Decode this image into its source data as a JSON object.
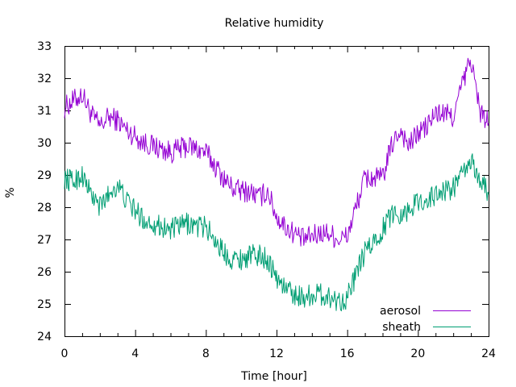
{
  "chart_data": {
    "type": "line",
    "title": "Relative humidity",
    "xlabel": "Time [hour]",
    "ylabel": "%",
    "xlim": [
      0,
      24
    ],
    "ylim": [
      24,
      33
    ],
    "xticks": [
      0,
      4,
      8,
      12,
      16,
      20,
      24
    ],
    "yticks": [
      24,
      25,
      26,
      27,
      28,
      29,
      30,
      31,
      32,
      33
    ],
    "grid": false,
    "legend_position": "bottom-right",
    "series": [
      {
        "name": "aerosol",
        "color": "#9400d3",
        "x": [
          0,
          0.5,
          1,
          1.5,
          2,
          2.5,
          3,
          3.5,
          4,
          4.5,
          5,
          5.5,
          6,
          6.5,
          7,
          7.5,
          8,
          8.5,
          9,
          9.5,
          10,
          10.5,
          11,
          11.5,
          12,
          12.5,
          13,
          13.5,
          14,
          14.5,
          15,
          15.5,
          16,
          16.5,
          17,
          17.5,
          18,
          18.5,
          19,
          19.5,
          20,
          20.5,
          21,
          21.5,
          22,
          22.5,
          23,
          23.5,
          24
        ],
        "y": [
          31.1,
          31.3,
          31.5,
          30.9,
          30.5,
          30.8,
          30.7,
          30.4,
          30.2,
          30.0,
          29.9,
          29.8,
          29.7,
          29.8,
          29.9,
          29.8,
          29.7,
          29.3,
          28.9,
          28.6,
          28.5,
          28.5,
          28.3,
          28.5,
          27.7,
          27.4,
          27.2,
          27.0,
          27.1,
          27.2,
          27.2,
          27.0,
          27.1,
          28.0,
          28.9,
          28.9,
          28.9,
          29.9,
          30.4,
          29.9,
          30.3,
          30.5,
          30.9,
          30.9,
          30.8,
          31.8,
          32.6,
          31.0,
          30.6
        ]
      },
      {
        "name": "sheath",
        "color": "#009e73",
        "x": [
          0,
          0.5,
          1,
          1.5,
          2,
          2.5,
          3,
          3.5,
          4,
          4.5,
          5,
          5.5,
          6,
          6.5,
          7,
          7.5,
          8,
          8.5,
          9,
          9.5,
          10,
          10.5,
          11,
          11.5,
          12,
          12.5,
          13,
          13.5,
          14,
          14.5,
          15,
          15.5,
          16,
          16.5,
          17,
          17.5,
          18,
          18.5,
          19,
          19.5,
          20,
          20.5,
          21,
          21.5,
          22,
          22.5,
          23,
          23.5,
          24
        ],
        "y": [
          28.9,
          28.8,
          29.0,
          28.4,
          28.0,
          28.4,
          28.7,
          28.2,
          27.9,
          27.6,
          27.5,
          27.4,
          27.3,
          27.4,
          27.5,
          27.4,
          27.4,
          27.0,
          26.6,
          26.4,
          26.4,
          26.5,
          26.5,
          26.4,
          25.8,
          25.5,
          25.3,
          25.2,
          25.3,
          25.3,
          25.2,
          25.1,
          25.2,
          25.9,
          26.6,
          26.9,
          27.3,
          27.8,
          27.8,
          27.9,
          28.2,
          28.2,
          28.4,
          28.5,
          28.6,
          29.0,
          29.4,
          28.9,
          28.4
        ]
      }
    ]
  }
}
